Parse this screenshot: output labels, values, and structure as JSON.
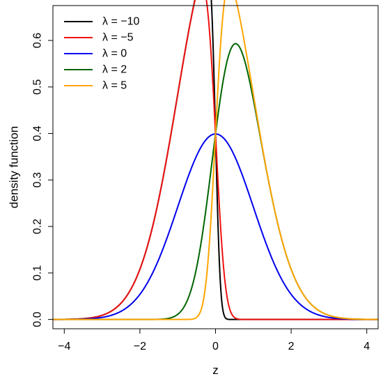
{
  "chart_data": {
    "type": "line",
    "title": "",
    "xlabel": "z",
    "ylabel": "density function",
    "xlim": [
      -4.3,
      4.3
    ],
    "ylim": [
      -0.02,
      0.675
    ],
    "x_ticks": [
      -4,
      -2,
      0,
      2,
      4
    ],
    "y_ticks": [
      0.0,
      0.1,
      0.2,
      0.3,
      0.4,
      0.5,
      0.6
    ],
    "x_tick_labels": [
      "−4",
      "−2",
      "0",
      "2",
      "4"
    ],
    "y_tick_labels": [
      "0.0",
      "0.1",
      "0.2",
      "0.3",
      "0.4",
      "0.5",
      "0.6"
    ],
    "grid": false,
    "legend_position": "top-left",
    "distribution": "skew-normal density, shape parameter lambda",
    "series": [
      {
        "name": "λ = −10",
        "lambda": -10,
        "color": "#000000"
      },
      {
        "name": "λ = −5",
        "lambda": -5,
        "color": "#ee1111"
      },
      {
        "name": "λ = 0",
        "lambda": 0,
        "color": "#0000ee"
      },
      {
        "name": "λ = 2",
        "lambda": 2,
        "color": "#006400"
      },
      {
        "name": "λ = 5",
        "lambda": 5,
        "color": "#ffa500"
      }
    ]
  }
}
